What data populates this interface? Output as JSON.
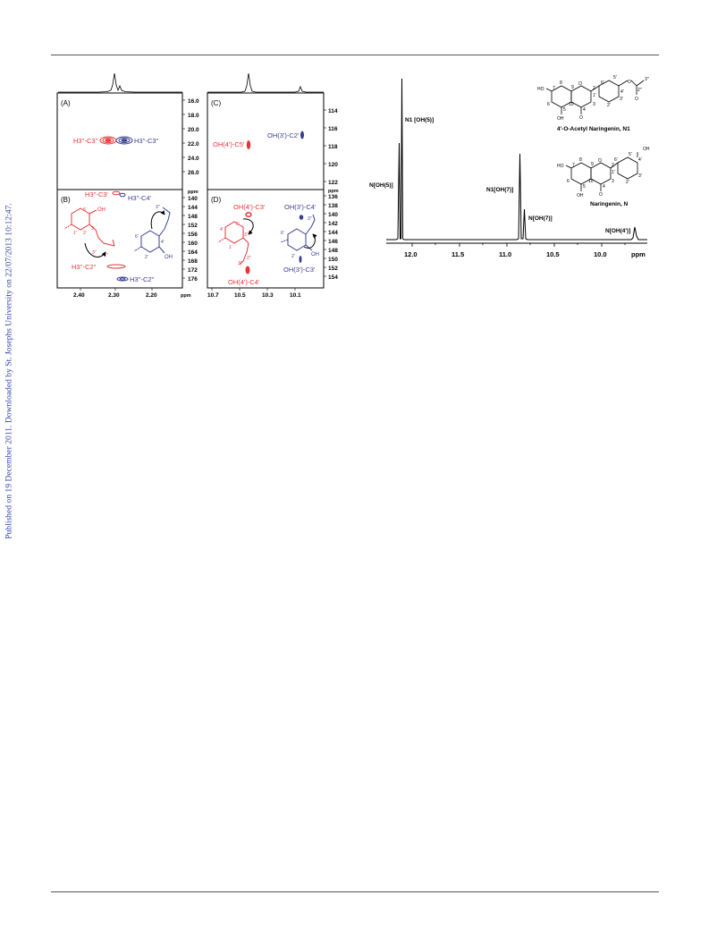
{
  "sidebar": {
    "publication_note": "Published on 19 December 2011. Downloaded by St. Josephs University on 22/07/2013 10:12:47."
  },
  "colors": {
    "red": "#e8343a",
    "blue": "#3a3f8f",
    "sidebar": "#3344aa"
  },
  "figure_left": {
    "panel_labels": {
      "a": "(A)",
      "b": "(B)",
      "c": "(C)",
      "d": "(D)"
    },
    "ppm": "ppm",
    "ab_ticks_top": [
      "16.0",
      "18.0",
      "20.0",
      "22.0",
      "24.0",
      "26.0"
    ],
    "ab_ticks_bottom": [
      "140",
      "144",
      "148",
      "152",
      "156",
      "160",
      "164",
      "168",
      "172",
      "176"
    ],
    "ab_x_ticks": [
      "2.40",
      "2.30",
      "2.20"
    ],
    "cd_ticks_top": [
      "114",
      "116",
      "118",
      "120",
      "122"
    ],
    "cd_ticks_bottom": [
      "136",
      "138",
      "140",
      "142",
      "144",
      "146",
      "148",
      "150",
      "152",
      "154"
    ],
    "cd_x_ticks": [
      "10.7",
      "10.5",
      "10.3",
      "10.1"
    ],
    "a_red": "H3''-C3''",
    "a_blue": "H3''-C3''",
    "b_red_top": "H3''-C3'",
    "b_blue_top": "H3''-C4'",
    "b_red_bottom": "H3''-C2''",
    "b_blue_bottom": "H3''-C2''",
    "c_red": "OH(4')-C5'",
    "c_blue": "OH(3')-C2'",
    "d_red_top": "OH(4')-C3'",
    "d_blue_top": "OH(3')-C4'",
    "d_red_bottom": "OH(4')-C4'",
    "d_blue_bottom": "OH(3')-C3'",
    "struct": {
      "oh": "OH",
      "n1": "1'",
      "n2": "2'",
      "n3": "3'",
      "n4": "4'",
      "n5": "5'",
      "n6": "6'",
      "n1pp": "1''",
      "n2pp": "2''",
      "n3pp": "3''"
    }
  },
  "spectrum": {
    "x_ticks": [
      "12.0",
      "11.5",
      "11.0",
      "10.5",
      "10.0"
    ],
    "ppm": "ppm",
    "peak_labels": {
      "n1_oh5": "N1 [OH(5)]",
      "n_oh5": "N[OH(5)]",
      "n1_oh7": "N1[OH(7)]",
      "n_oh7": "N[OH(7)]",
      "n_oh4": "N[OH(4')]"
    },
    "compound1": "4'-O-Acetyl Naringenin, N1",
    "compound2": "Naringenin, N",
    "atoms": {
      "ho": "HO",
      "oh": "OH",
      "o": "O",
      "c3pp": "3''",
      "c2pp": "2''",
      "c1pp": "1''"
    },
    "numbers": {
      "n1": "1",
      "n2": "2",
      "n3": "3",
      "n4": "4",
      "n5": "5",
      "n6": "6",
      "n7": "7",
      "n8": "8",
      "n9": "9",
      "n10": "10",
      "p1": "1'",
      "p2": "2'",
      "p3": "3'",
      "p4": "4'",
      "p5": "5'",
      "p6": "6'"
    }
  }
}
